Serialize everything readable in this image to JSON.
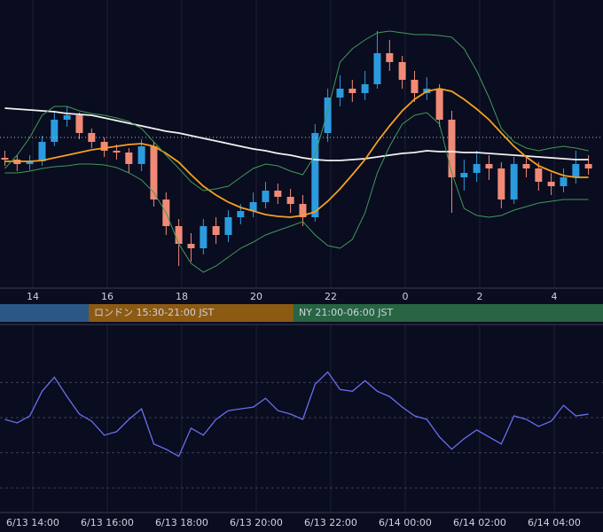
{
  "chart_data": [
    {
      "type": "candlestick",
      "x": [
        13.25,
        13.58,
        13.92,
        14.25,
        14.58,
        14.92,
        15.25,
        15.58,
        15.92,
        16.25,
        16.58,
        16.92,
        17.25,
        17.58,
        17.92,
        18.25,
        18.58,
        18.92,
        19.25,
        19.58,
        19.92,
        20.25,
        20.58,
        20.92,
        21.25,
        21.58,
        21.92,
        22.25,
        22.58,
        22.92,
        23.25,
        23.58,
        23.92,
        24.25,
        24.58,
        24.92,
        25.25,
        25.58,
        25.92,
        26.25,
        26.58,
        26.92,
        27.25,
        27.58,
        27.92,
        28.25,
        28.58,
        28.92
      ],
      "open": [
        147,
        145,
        140,
        143,
        165,
        190,
        195,
        175,
        165,
        155,
        153,
        140,
        160,
        100,
        70,
        50,
        45,
        70,
        60,
        80,
        87,
        97,
        110,
        103,
        95,
        80,
        175,
        215,
        225,
        220,
        230,
        265,
        255,
        235,
        220,
        225,
        190,
        125,
        130,
        140,
        135,
        100,
        140,
        135,
        120,
        115,
        125,
        140
      ],
      "high": [
        155,
        150,
        150,
        172,
        200,
        205,
        198,
        180,
        170,
        162,
        158,
        168,
        165,
        108,
        78,
        62,
        78,
        80,
        88,
        95,
        108,
        120,
        118,
        112,
        105,
        185,
        225,
        240,
        235,
        245,
        290,
        280,
        262,
        245,
        238,
        230,
        200,
        145,
        155,
        150,
        142,
        148,
        150,
        142,
        130,
        135,
        155,
        150
      ],
      "low": [
        138,
        132,
        133,
        138,
        160,
        182,
        168,
        158,
        148,
        145,
        130,
        132,
        92,
        60,
        25,
        30,
        38,
        50,
        52,
        72,
        80,
        90,
        95,
        85,
        70,
        75,
        165,
        205,
        210,
        212,
        225,
        245,
        225,
        210,
        212,
        182,
        85,
        110,
        120,
        122,
        90,
        95,
        125,
        110,
        105,
        108,
        118,
        128
      ],
      "close": [
        145,
        140,
        143,
        165,
        190,
        195,
        175,
        165,
        155,
        153,
        140,
        160,
        100,
        70,
        50,
        45,
        70,
        60,
        80,
        87,
        97,
        110,
        103,
        95,
        80,
        175,
        215,
        225,
        220,
        230,
        265,
        255,
        235,
        220,
        225,
        190,
        125,
        130,
        140,
        135,
        100,
        140,
        135,
        120,
        115,
        125,
        140,
        135
      ],
      "up_color": "#2b9be0",
      "down_color": "#f08a76",
      "series": [
        {
          "color": "#f2f2f2",
          "values": [
            203,
            202,
            201,
            200,
            199,
            197,
            196,
            195,
            192,
            189,
            186,
            183,
            180,
            177,
            175,
            172,
            169,
            166,
            163,
            160,
            157,
            155,
            152,
            150,
            147,
            145,
            144,
            144,
            145,
            146,
            148,
            150,
            152,
            153,
            155,
            154,
            154,
            153,
            153,
            152,
            151,
            150,
            149,
            148,
            147,
            146,
            145,
            145
          ]
        },
        {
          "color": "#f5a020",
          "values": [
            143,
            143,
            143,
            144,
            147,
            150,
            153,
            156,
            158,
            160,
            162,
            163,
            160,
            152,
            142,
            128,
            115,
            105,
            97,
            91,
            87,
            83,
            81,
            80,
            82,
            86,
            98,
            112,
            128,
            145,
            165,
            183,
            200,
            213,
            222,
            225,
            222,
            213,
            202,
            190,
            175,
            160,
            148,
            138,
            132,
            127,
            125,
            125
          ]
        },
        {
          "color": "#3f9a5a",
          "values": [
            135,
            150,
            170,
            195,
            205,
            205,
            200,
            197,
            195,
            192,
            188,
            180,
            165,
            150,
            135,
            120,
            110,
            112,
            115,
            125,
            135,
            140,
            138,
            132,
            128,
            150,
            200,
            255,
            270,
            280,
            288,
            290,
            288,
            286,
            286,
            285,
            283,
            270,
            245,
            215,
            180,
            165,
            158,
            155,
            158,
            160,
            158,
            155
          ]
        },
        {
          "color": "#3f9a5a",
          "values": [
            130,
            130,
            132,
            135,
            137,
            138,
            140,
            140,
            139,
            136,
            130,
            122,
            108,
            85,
            50,
            28,
            18,
            25,
            35,
            45,
            52,
            60,
            65,
            70,
            75,
            60,
            48,
            45,
            55,
            85,
            130,
            160,
            185,
            195,
            198,
            185,
            130,
            90,
            82,
            80,
            82,
            88,
            92,
            96,
            98,
            100,
            100,
            100
          ]
        }
      ],
      "price_line": 170,
      "xlim": [
        13.12,
        29.31
      ],
      "ylim": [
        0,
        325
      ],
      "xticks": [
        14,
        16,
        18,
        20,
        22,
        {
          "value": 24,
          "label": "0"
        },
        {
          "value": 26,
          "label": "2"
        },
        {
          "value": 28,
          "label": "4"
        }
      ],
      "sessions": [
        {
          "label": null,
          "start": 9,
          "end": 15.5,
          "color": "#2b5787"
        },
        {
          "label": "ロンドン 15:30-21:00 JST",
          "start": 15.5,
          "end": 21,
          "color": "#8c5a12"
        },
        {
          "label": "NY 21:00-06:00 JST",
          "start": 21,
          "end": 30,
          "color": "#276543"
        }
      ]
    },
    {
      "type": "line",
      "x": [
        13.25,
        13.58,
        13.92,
        14.25,
        14.58,
        14.92,
        15.25,
        15.58,
        15.92,
        16.25,
        16.58,
        16.92,
        17.25,
        17.58,
        17.92,
        18.25,
        18.58,
        18.92,
        19.25,
        19.58,
        19.92,
        20.25,
        20.58,
        20.92,
        21.25,
        21.58,
        21.92,
        22.25,
        22.58,
        22.92,
        23.25,
        23.58,
        23.92,
        24.25,
        24.58,
        24.92,
        25.25,
        25.58,
        25.92,
        26.25,
        26.58,
        26.92,
        27.25,
        27.58,
        27.92,
        28.25,
        28.58,
        28.92
      ],
      "values": [
        49,
        47,
        51,
        65,
        73,
        62,
        52,
        48,
        40,
        42,
        49,
        55,
        35,
        32,
        28,
        44,
        40,
        49,
        54,
        55,
        56,
        61,
        54,
        52,
        49,
        69,
        76,
        66,
        65,
        71,
        65,
        62,
        56,
        51,
        49,
        39,
        32,
        38,
        43,
        39,
        35,
        51,
        49,
        45,
        48,
        57,
        51,
        52
      ],
      "color": "#6670ee",
      "levels": [
        10,
        30,
        50,
        70
      ],
      "xlim": [
        13.12,
        29.31
      ],
      "ylim": [
        -4,
        103
      ],
      "xticks": [
        {
          "value": 14,
          "label": "6/13 14:00"
        },
        {
          "value": 16,
          "label": "6/13 16:00"
        },
        {
          "value": 18,
          "label": "6/13 18:00"
        },
        {
          "value": 20,
          "label": "6/13 20:00"
        },
        {
          "value": 22,
          "label": "6/13 22:00"
        },
        {
          "value": 24,
          "label": "6/14 00:00"
        },
        {
          "value": 26,
          "label": "6/14 02:00"
        },
        {
          "value": 28,
          "label": "6/14 04:00"
        }
      ]
    }
  ]
}
